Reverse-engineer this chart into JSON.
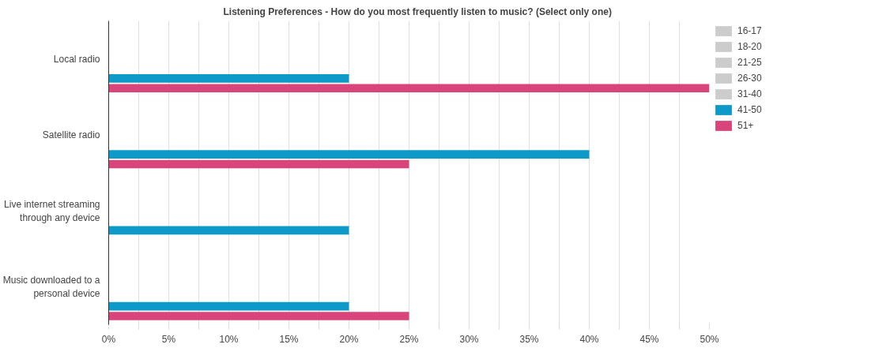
{
  "chart_data": {
    "type": "bar",
    "orientation": "horizontal",
    "title": "Listening Preferences - How do you most frequently listen to music? (Select only one)",
    "categories": [
      "Local radio",
      "Satellite radio",
      "Live internet streaming through any device",
      "Music downloaded to a personal device"
    ],
    "series": [
      {
        "name": "16-17",
        "color": "#cccccc",
        "values": [
          null,
          null,
          null,
          null
        ]
      },
      {
        "name": "18-20",
        "color": "#cccccc",
        "values": [
          null,
          null,
          null,
          null
        ]
      },
      {
        "name": "21-25",
        "color": "#cccccc",
        "values": [
          null,
          null,
          null,
          null
        ]
      },
      {
        "name": "26-30",
        "color": "#cccccc",
        "values": [
          null,
          null,
          null,
          null
        ]
      },
      {
        "name": "31-40",
        "color": "#cccccc",
        "values": [
          null,
          null,
          null,
          null
        ]
      },
      {
        "name": "41-50",
        "color": "#0e9ac8",
        "values": [
          20,
          40,
          20,
          20
        ]
      },
      {
        "name": "51+",
        "color": "#d9457a",
        "values": [
          50,
          25,
          null,
          25
        ]
      }
    ],
    "xlim": [
      0,
      50
    ],
    "xticks": [
      {
        "value": 0,
        "label": "0%"
      },
      {
        "value": 2.5,
        "label": null
      },
      {
        "value": 5,
        "label": "5%"
      },
      {
        "value": 7.5,
        "label": null
      },
      {
        "value": 10,
        "label": "10%"
      },
      {
        "value": 12.5,
        "label": null
      },
      {
        "value": 15,
        "label": "15%"
      },
      {
        "value": 17.5,
        "label": null
      },
      {
        "value": 20,
        "label": "20%"
      },
      {
        "value": 22.5,
        "label": null
      },
      {
        "value": 25,
        "label": "25%"
      },
      {
        "value": 27.5,
        "label": null
      },
      {
        "value": 30,
        "label": "30%"
      },
      {
        "value": 32.5,
        "label": null
      },
      {
        "value": 35,
        "label": "35%"
      },
      {
        "value": 37.5,
        "label": null
      },
      {
        "value": 40,
        "label": "40%"
      },
      {
        "value": 42.5,
        "label": null
      },
      {
        "value": 45,
        "label": "45%"
      },
      {
        "value": 47.5,
        "label": null
      },
      {
        "value": 50,
        "label": "50%"
      }
    ],
    "grid": "x",
    "legend": "top right"
  }
}
